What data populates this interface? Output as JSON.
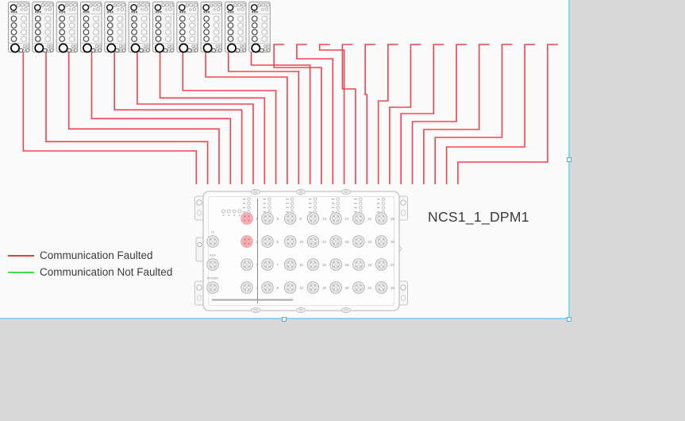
{
  "app": {
    "canvas_bg": "#fbfbfb",
    "workspace_bg": "#d8d8d8",
    "selection_color": "#8cd5eb",
    "handle_border_color": "#53aed2"
  },
  "legend": {
    "items": [
      {
        "label": "Communication Faulted",
        "color": "#e2403d"
      },
      {
        "label": "Communication Not Faulted",
        "color": "#3fdf4a"
      }
    ]
  },
  "device": {
    "label": "NCS1_1_DPM1",
    "side_port_labels": [
      "X1",
      "AUX",
      "POWER"
    ],
    "front_port_numbers": [
      "1",
      "2",
      "3",
      "4"
    ],
    "grid_port_numbers": [
      5,
      6,
      7,
      8,
      9,
      10,
      11,
      12,
      13,
      14,
      15,
      16,
      17,
      18,
      19,
      20,
      21,
      22,
      23,
      24,
      25,
      26,
      27,
      28
    ],
    "highlighted_port_numbers": [
      1,
      2
    ],
    "highlight_color": "#f8b9be"
  },
  "connections": {
    "status": "Communication Faulted",
    "status_color": "#f14350",
    "remote_module_count": 11,
    "stub_endpoint_count": 13,
    "total_connections": 24
  }
}
